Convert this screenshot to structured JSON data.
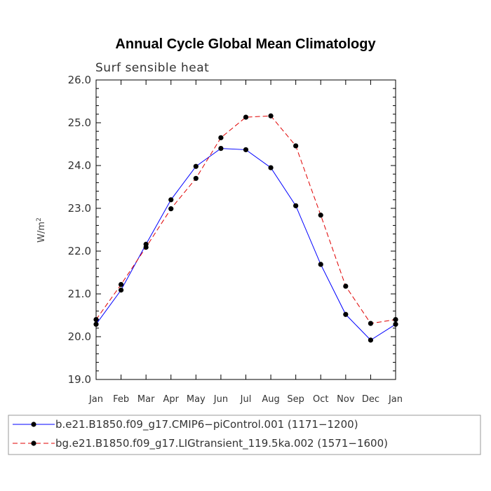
{
  "chart_data": {
    "type": "line",
    "title": "Annual Cycle Global Mean Climatology",
    "subtitle": "Surf sensible heat",
    "xlabel": "",
    "ylabel_base": "W/m",
    "ylabel_sup": "2",
    "ylim": [
      19.0,
      26.0
    ],
    "yticks": [
      19.0,
      20.0,
      21.0,
      22.0,
      23.0,
      24.0,
      25.0,
      26.0
    ],
    "ytick_labels": [
      "19.0",
      "20.0",
      "21.0",
      "22.0",
      "23.0",
      "24.0",
      "25.0",
      "26.0"
    ],
    "categories": [
      "Jan",
      "Feb",
      "Mar",
      "Apr",
      "May",
      "Jun",
      "Jul",
      "Aug",
      "Sep",
      "Oct",
      "Nov",
      "Dec",
      "Jan"
    ],
    "series": [
      {
        "name": "b.e21.B1850.f09_g17.CMIP6−piControl.001 (1171−1200)",
        "color": "#0000ff",
        "dash": "solid",
        "values": [
          20.29,
          21.09,
          22.16,
          23.2,
          23.98,
          24.4,
          24.37,
          23.95,
          23.06,
          21.69,
          20.52,
          19.92,
          20.29
        ]
      },
      {
        "name": "bg.e21.B1850.f09_g17.LIGtransient_119.5ka.002 (1571−1600)",
        "color": "#e00000",
        "dash": "dashed",
        "values": [
          20.4,
          21.22,
          22.09,
          22.99,
          23.7,
          24.65,
          25.13,
          25.16,
          24.46,
          22.84,
          21.18,
          20.31,
          20.4
        ]
      }
    ],
    "grid": false,
    "legend_position": "bottom"
  }
}
